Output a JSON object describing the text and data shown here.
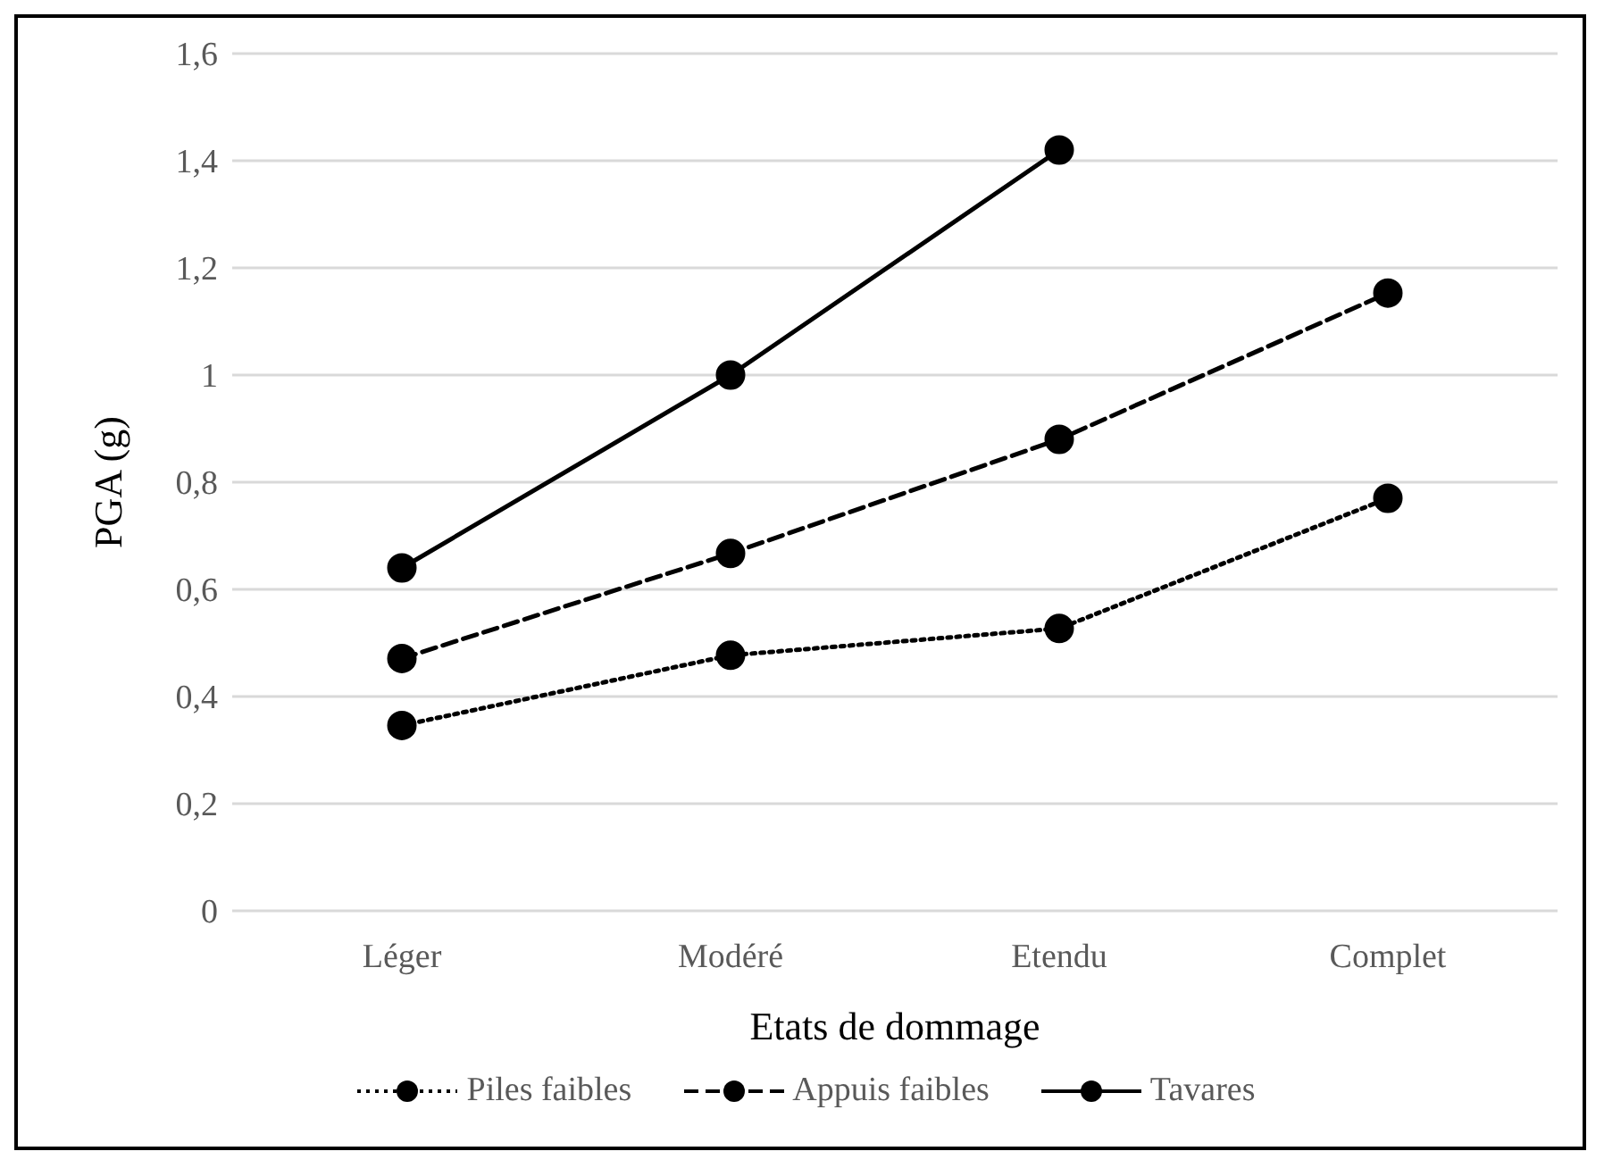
{
  "chart_data": {
    "type": "line",
    "xlabel": "Etats de dommage",
    "ylabel": "PGA (g)",
    "categories": [
      "Léger",
      "Modéré",
      "Etendu",
      "Complet"
    ],
    "series": [
      {
        "name": "Piles faibles",
        "color": "#000000",
        "line_style": "dotted",
        "values": [
          0.346,
          0.477,
          0.527,
          0.77
        ]
      },
      {
        "name": "Appuis faibles",
        "color": "#000000",
        "line_style": "dashed",
        "values": [
          0.471,
          0.667,
          0.88,
          1.153
        ]
      },
      {
        "name": "Tavares",
        "color": "#000000",
        "line_style": "solid",
        "values": [
          0.64,
          1.0,
          1.42,
          null
        ]
      }
    ],
    "ylim": [
      0,
      1.6
    ],
    "yticks": [
      0,
      {
        "value": 0.2,
        "label": "0,2"
      },
      {
        "value": 0.4,
        "label": "0,4"
      },
      {
        "value": 0.6,
        "label": "0,6"
      },
      {
        "value": 0.8,
        "label": "0,8"
      },
      1,
      {
        "value": 1.2,
        "label": "1,2"
      },
      {
        "value": 1.4,
        "label": "1,4"
      },
      {
        "value": 1.6,
        "label": "1,6"
      }
    ],
    "grid": "y",
    "legend": "bottom",
    "marker": "circle"
  }
}
